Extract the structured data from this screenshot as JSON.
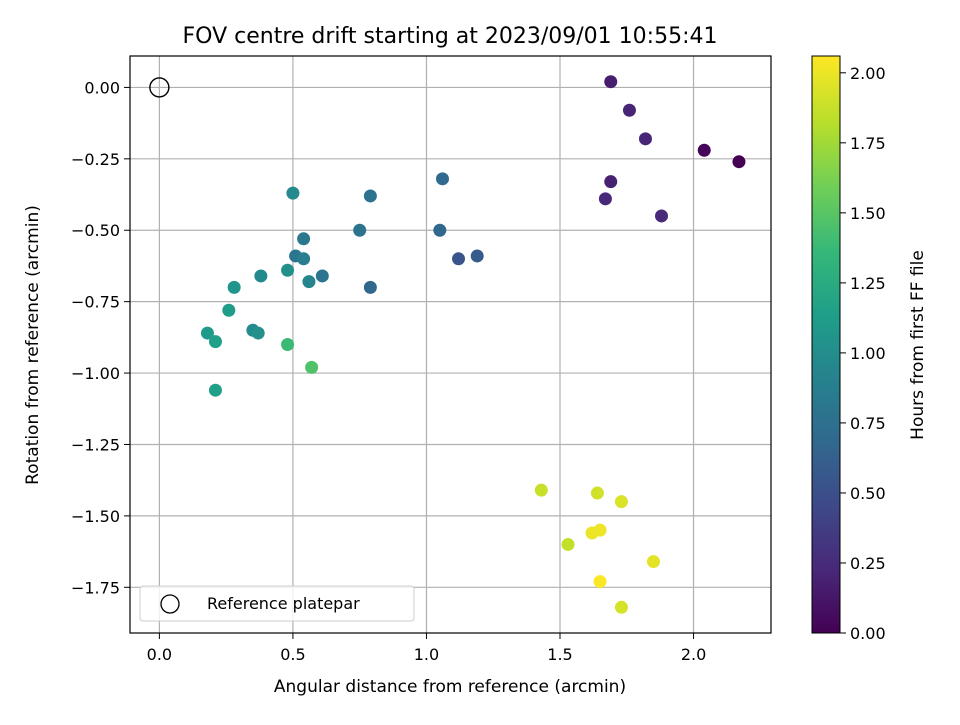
{
  "chart_data": {
    "type": "scatter",
    "title": "FOV centre drift starting at 2023/09/01 10:55:41",
    "xlabel": "Angular distance from reference (arcmin)",
    "ylabel": "Rotation from reference (arcmin)",
    "xlim": [
      -0.11,
      2.29
    ],
    "ylim": [
      -1.91,
      0.11
    ],
    "xticks": [
      0.0,
      0.5,
      1.0,
      1.5,
      2.0
    ],
    "xtick_labels": [
      "0.0",
      "0.5",
      "1.0",
      "1.5",
      "2.0"
    ],
    "yticks": [
      0.0,
      -0.25,
      -0.5,
      -0.75,
      -1.0,
      -1.25,
      -1.5,
      -1.75
    ],
    "ytick_labels": [
      "0.00",
      "−0.25",
      "−0.50",
      "−0.75",
      "−1.00",
      "−1.25",
      "−1.50",
      "−1.75"
    ],
    "grid": true,
    "legend": {
      "placement": "lower-left",
      "entries": [
        "Reference platepar"
      ]
    },
    "reference_point": {
      "x": 0.0,
      "y": 0.0,
      "marker": "open-circle"
    },
    "colorbar": {
      "label": "Hours from first FF file",
      "colormap": "viridis",
      "range": [
        0.0,
        2.06
      ],
      "ticks": [
        0.0,
        0.25,
        0.5,
        0.75,
        1.0,
        1.25,
        1.5,
        1.75,
        2.0
      ],
      "tick_labels": [
        "0.00",
        "0.25",
        "0.50",
        "0.75",
        "1.00",
        "1.25",
        "1.50",
        "1.75",
        "2.00"
      ]
    },
    "points": [
      {
        "x": 2.17,
        "y": -0.26,
        "hours": 0.0
      },
      {
        "x": 2.04,
        "y": -0.22,
        "hours": 0.03
      },
      {
        "x": 1.69,
        "y": 0.02,
        "hours": 0.17
      },
      {
        "x": 1.76,
        "y": -0.08,
        "hours": 0.21
      },
      {
        "x": 1.82,
        "y": -0.18,
        "hours": 0.22
      },
      {
        "x": 1.69,
        "y": -0.33,
        "hours": 0.19
      },
      {
        "x": 1.67,
        "y": -0.39,
        "hours": 0.23
      },
      {
        "x": 1.88,
        "y": -0.45,
        "hours": 0.24
      },
      {
        "x": 1.06,
        "y": -0.32,
        "hours": 0.7
      },
      {
        "x": 1.05,
        "y": -0.5,
        "hours": 0.69
      },
      {
        "x": 1.12,
        "y": -0.6,
        "hours": 0.55
      },
      {
        "x": 1.19,
        "y": -0.59,
        "hours": 0.6
      },
      {
        "x": 0.79,
        "y": -0.7,
        "hours": 0.69
      },
      {
        "x": 0.79,
        "y": -0.38,
        "hours": 0.78
      },
      {
        "x": 0.75,
        "y": -0.5,
        "hours": 0.79
      },
      {
        "x": 0.5,
        "y": -0.37,
        "hours": 0.98
      },
      {
        "x": 0.54,
        "y": -0.53,
        "hours": 0.82
      },
      {
        "x": 0.51,
        "y": -0.59,
        "hours": 0.8
      },
      {
        "x": 0.54,
        "y": -0.6,
        "hours": 0.88
      },
      {
        "x": 0.61,
        "y": -0.66,
        "hours": 0.8
      },
      {
        "x": 0.56,
        "y": -0.68,
        "hours": 0.94
      },
      {
        "x": 0.48,
        "y": -0.64,
        "hours": 1.03
      },
      {
        "x": 0.38,
        "y": -0.66,
        "hours": 0.97
      },
      {
        "x": 0.28,
        "y": -0.7,
        "hours": 1.07
      },
      {
        "x": 0.26,
        "y": -0.78,
        "hours": 1.14
      },
      {
        "x": 0.18,
        "y": -0.86,
        "hours": 1.11
      },
      {
        "x": 0.35,
        "y": -0.85,
        "hours": 0.99
      },
      {
        "x": 0.37,
        "y": -0.86,
        "hours": 1.03
      },
      {
        "x": 0.21,
        "y": -0.89,
        "hours": 1.16
      },
      {
        "x": 0.21,
        "y": -1.06,
        "hours": 1.16
      },
      {
        "x": 0.48,
        "y": -0.9,
        "hours": 1.4
      },
      {
        "x": 0.57,
        "y": -0.98,
        "hours": 1.48
      },
      {
        "x": 1.43,
        "y": -1.41,
        "hours": 1.89
      },
      {
        "x": 1.64,
        "y": -1.42,
        "hours": 1.92
      },
      {
        "x": 1.73,
        "y": -1.45,
        "hours": 1.95
      },
      {
        "x": 1.53,
        "y": -1.6,
        "hours": 1.87
      },
      {
        "x": 1.62,
        "y": -1.56,
        "hours": 2.0
      },
      {
        "x": 1.65,
        "y": -1.55,
        "hours": 2.01
      },
      {
        "x": 1.85,
        "y": -1.66,
        "hours": 1.98
      },
      {
        "x": 1.65,
        "y": -1.73,
        "hours": 2.05
      },
      {
        "x": 1.73,
        "y": -1.82,
        "hours": 1.93
      }
    ]
  }
}
